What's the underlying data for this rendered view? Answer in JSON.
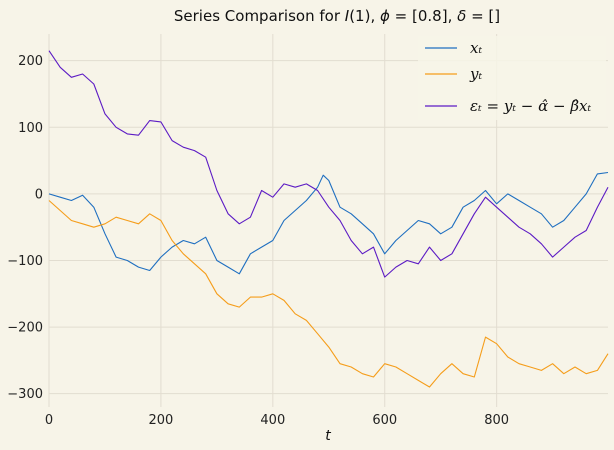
{
  "chart_data": {
    "type": "line",
    "title": "Series Comparison for I(1), ϕ = [0.8], δ = []",
    "xlabel": "t",
    "ylabel": "",
    "xlim": [
      0,
      999
    ],
    "ylim": [
      -320,
      240
    ],
    "xticks": [
      0,
      200,
      400,
      600,
      800
    ],
    "yticks": [
      -300,
      -200,
      -100,
      0,
      100,
      200
    ],
    "xtick_labels": [
      "0",
      "200",
      "400",
      "600",
      "800"
    ],
    "ytick_labels": [
      "−300",
      "−200",
      "−100",
      "0",
      "100",
      "200"
    ],
    "grid": true,
    "legend_position": "top-right",
    "series": [
      {
        "name": "xₜ",
        "color": "#1f6fc0",
        "points": [
          [
            0,
            0
          ],
          [
            20,
            -5
          ],
          [
            40,
            -10
          ],
          [
            60,
            -2
          ],
          [
            80,
            -20
          ],
          [
            100,
            -60
          ],
          [
            120,
            -95
          ],
          [
            140,
            -100
          ],
          [
            160,
            -110
          ],
          [
            180,
            -115
          ],
          [
            200,
            -95
          ],
          [
            220,
            -80
          ],
          [
            240,
            -70
          ],
          [
            260,
            -75
          ],
          [
            280,
            -65
          ],
          [
            300,
            -100
          ],
          [
            320,
            -110
          ],
          [
            340,
            -120
          ],
          [
            360,
            -90
          ],
          [
            380,
            -80
          ],
          [
            400,
            -70
          ],
          [
            420,
            -40
          ],
          [
            440,
            -25
          ],
          [
            460,
            -10
          ],
          [
            480,
            10
          ],
          [
            490,
            28
          ],
          [
            500,
            20
          ],
          [
            520,
            -20
          ],
          [
            540,
            -30
          ],
          [
            560,
            -45
          ],
          [
            580,
            -60
          ],
          [
            600,
            -90
          ],
          [
            620,
            -70
          ],
          [
            640,
            -55
          ],
          [
            660,
            -40
          ],
          [
            680,
            -45
          ],
          [
            700,
            -60
          ],
          [
            720,
            -50
          ],
          [
            740,
            -20
          ],
          [
            760,
            -10
          ],
          [
            780,
            5
          ],
          [
            800,
            -15
          ],
          [
            820,
            0
          ],
          [
            840,
            -10
          ],
          [
            860,
            -20
          ],
          [
            880,
            -30
          ],
          [
            900,
            -50
          ],
          [
            920,
            -40
          ],
          [
            940,
            -20
          ],
          [
            960,
            0
          ],
          [
            980,
            30
          ],
          [
            999,
            32
          ]
        ]
      },
      {
        "name": "yₜ",
        "color": "#f59d1a",
        "points": [
          [
            0,
            -10
          ],
          [
            20,
            -25
          ],
          [
            40,
            -40
          ],
          [
            60,
            -45
          ],
          [
            80,
            -50
          ],
          [
            100,
            -45
          ],
          [
            120,
            -35
          ],
          [
            140,
            -40
          ],
          [
            160,
            -45
          ],
          [
            180,
            -30
          ],
          [
            200,
            -40
          ],
          [
            220,
            -70
          ],
          [
            240,
            -90
          ],
          [
            260,
            -105
          ],
          [
            280,
            -120
          ],
          [
            300,
            -150
          ],
          [
            320,
            -165
          ],
          [
            340,
            -170
          ],
          [
            360,
            -155
          ],
          [
            380,
            -155
          ],
          [
            400,
            -150
          ],
          [
            420,
            -160
          ],
          [
            440,
            -180
          ],
          [
            460,
            -190
          ],
          [
            480,
            -210
          ],
          [
            500,
            -230
          ],
          [
            520,
            -255
          ],
          [
            540,
            -260
          ],
          [
            560,
            -270
          ],
          [
            580,
            -275
          ],
          [
            600,
            -255
          ],
          [
            620,
            -260
          ],
          [
            640,
            -270
          ],
          [
            660,
            -280
          ],
          [
            680,
            -290
          ],
          [
            700,
            -270
          ],
          [
            720,
            -255
          ],
          [
            740,
            -270
          ],
          [
            760,
            -275
          ],
          [
            780,
            -215
          ],
          [
            800,
            -225
          ],
          [
            820,
            -245
          ],
          [
            840,
            -255
          ],
          [
            860,
            -260
          ],
          [
            880,
            -265
          ],
          [
            900,
            -255
          ],
          [
            920,
            -270
          ],
          [
            940,
            -260
          ],
          [
            960,
            -270
          ],
          [
            980,
            -265
          ],
          [
            999,
            -240
          ]
        ]
      },
      {
        "name": "εₜ = yₜ − α̂ − β̂xₜ",
        "color": "#5c1bc4",
        "points": [
          [
            0,
            215
          ],
          [
            20,
            190
          ],
          [
            40,
            175
          ],
          [
            60,
            180
          ],
          [
            80,
            165
          ],
          [
            100,
            120
          ],
          [
            120,
            100
          ],
          [
            140,
            90
          ],
          [
            160,
            88
          ],
          [
            180,
            110
          ],
          [
            200,
            108
          ],
          [
            220,
            80
          ],
          [
            240,
            70
          ],
          [
            260,
            65
          ],
          [
            280,
            55
          ],
          [
            300,
            5
          ],
          [
            320,
            -30
          ],
          [
            340,
            -45
          ],
          [
            360,
            -35
          ],
          [
            380,
            5
          ],
          [
            400,
            -5
          ],
          [
            420,
            15
          ],
          [
            440,
            10
          ],
          [
            460,
            15
          ],
          [
            480,
            5
          ],
          [
            500,
            -20
          ],
          [
            520,
            -40
          ],
          [
            540,
            -70
          ],
          [
            560,
            -90
          ],
          [
            580,
            -80
          ],
          [
            600,
            -125
          ],
          [
            620,
            -110
          ],
          [
            640,
            -100
          ],
          [
            660,
            -105
          ],
          [
            680,
            -80
          ],
          [
            700,
            -100
          ],
          [
            720,
            -90
          ],
          [
            740,
            -60
          ],
          [
            760,
            -30
          ],
          [
            780,
            -5
          ],
          [
            800,
            -20
          ],
          [
            820,
            -35
          ],
          [
            840,
            -50
          ],
          [
            860,
            -60
          ],
          [
            880,
            -75
          ],
          [
            900,
            -95
          ],
          [
            920,
            -80
          ],
          [
            940,
            -65
          ],
          [
            960,
            -55
          ],
          [
            980,
            -20
          ],
          [
            999,
            10
          ]
        ]
      }
    ]
  }
}
